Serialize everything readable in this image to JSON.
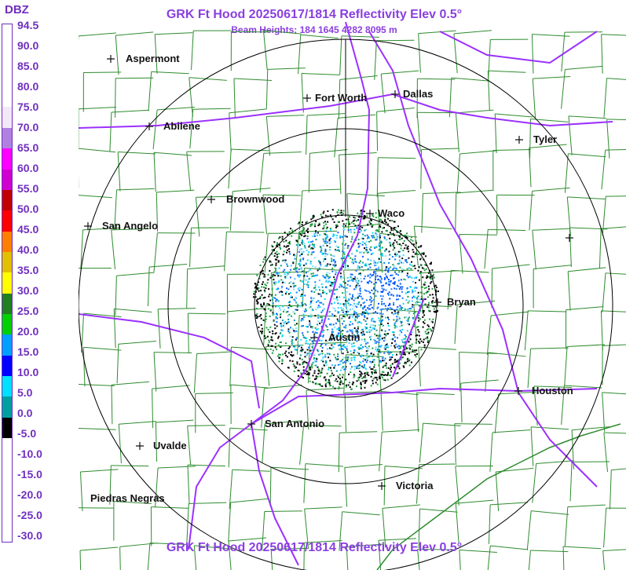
{
  "title": "GRK Ft Hood 20250617/1814 Reflectivity Elev 0.5°",
  "subtitle": "Beam Heights: 184 1645 4282 8095 m",
  "bottom_title": "GRK Ft Hood 20250617/1814 Reflectivity Elev 0.5°",
  "legend": {
    "unit": "DBZ",
    "ticks": [
      "94.5",
      "90.0",
      "85.0",
      "80.0",
      "75.0",
      "70.0",
      "65.0",
      "60.0",
      "55.0",
      "50.0",
      "45.0",
      "40.0",
      "35.0",
      "30.0",
      "25.0",
      "20.0",
      "15.0",
      "10.0",
      "5.0",
      "0.0",
      "-5.0",
      "-10.0",
      "-15.0",
      "-20.0",
      "-25.0",
      "-30.0"
    ],
    "colors": [
      "#ffffff",
      "#ffffff",
      "#ffffff",
      "#ffffff",
      "#f3e8f8",
      "#b080e0",
      "#ff00ff",
      "#d000d0",
      "#c00000",
      "#ff0000",
      "#ff8000",
      "#e0c000",
      "#ffff00",
      "#208020",
      "#00d000",
      "#00a0ff",
      "#0000ff",
      "#00e0ff",
      "#00a0a0",
      "#000000",
      "#ffffff",
      "#ffffff",
      "#ffffff",
      "#ffffff",
      "#ffffff"
    ]
  },
  "cities": [
    {
      "name": "Aspermont"
    },
    {
      "name": "Fort Worth"
    },
    {
      "name": "Dallas"
    },
    {
      "name": "Abilene"
    },
    {
      "name": "Tyler"
    },
    {
      "name": "Brownwood"
    },
    {
      "name": "Waco"
    },
    {
      "name": "San Angelo"
    },
    {
      "name": "Bryan"
    },
    {
      "name": "Austin"
    },
    {
      "name": "Houston"
    },
    {
      "name": "San Antonio"
    },
    {
      "name": "Uvalde"
    },
    {
      "name": "Victoria"
    },
    {
      "name": "Piedras Negras"
    }
  ],
  "range_rings": 3,
  "colors": {
    "title": "#8a3fe0",
    "county_lines": "#2e8b2e",
    "highways": "#9b30ff",
    "rings": "#000000"
  }
}
